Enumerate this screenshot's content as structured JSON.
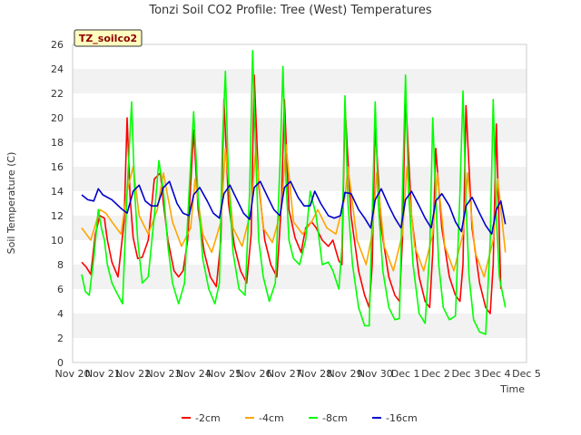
{
  "chart_data": {
    "type": "line",
    "title": "Tonzi Soil CO2 Profile: Tree (West) Temperatures",
    "xlabel": "Time",
    "ylabel": "Soil Temperature (C)",
    "badge": "TZ_soilco2",
    "ylim": [
      0,
      26
    ],
    "yticks": [
      0,
      2,
      4,
      6,
      8,
      10,
      12,
      14,
      16,
      18,
      20,
      22,
      24,
      26
    ],
    "xlim": [
      0,
      15
    ],
    "xticks": [
      {
        "x": 0,
        "label": "Nov 20"
      },
      {
        "x": 1,
        "label": "Nov 21"
      },
      {
        "x": 2,
        "label": "Nov 22"
      },
      {
        "x": 3,
        "label": "Nov 23"
      },
      {
        "x": 4,
        "label": "Nov 24"
      },
      {
        "x": 5,
        "label": "Nov 25"
      },
      {
        "x": 6,
        "label": "Nov 26"
      },
      {
        "x": 7,
        "label": "Nov 27"
      },
      {
        "x": 8,
        "label": "Nov 28"
      },
      {
        "x": 9,
        "label": "Nov 29"
      },
      {
        "x": 10,
        "label": "Nov 30"
      },
      {
        "x": 11,
        "label": "Dec 1"
      },
      {
        "x": 12,
        "label": "Dec 2"
      },
      {
        "x": 13,
        "label": "Dec 3"
      },
      {
        "x": 14,
        "label": "Dec 4"
      },
      {
        "x": 15,
        "label": "Dec 5"
      }
    ],
    "grid": "horizontal bands",
    "legend_position": "bottom",
    "series": [
      {
        "name": "-2cm",
        "color": "#ff0000",
        "x": [
          0.3,
          0.45,
          0.6,
          0.75,
          0.9,
          1.05,
          1.15,
          1.3,
          1.5,
          1.7,
          1.8,
          1.9,
          2.0,
          2.15,
          2.3,
          2.5,
          2.7,
          2.9,
          3.0,
          3.15,
          3.35,
          3.5,
          3.65,
          3.8,
          4.0,
          4.15,
          4.35,
          4.55,
          4.75,
          4.9,
          5.0,
          5.15,
          5.35,
          5.55,
          5.75,
          5.9,
          6.0,
          6.15,
          6.35,
          6.55,
          6.75,
          6.9,
          7.0,
          7.15,
          7.35,
          7.55,
          7.7,
          7.9,
          8.05,
          8.25,
          8.45,
          8.6,
          8.8,
          8.9,
          9.0,
          9.2,
          9.45,
          9.65,
          9.8,
          9.9,
          10.0,
          10.2,
          10.45,
          10.65,
          10.8,
          10.9,
          11.0,
          11.2,
          11.45,
          11.65,
          11.8,
          11.9,
          12.0,
          12.2,
          12.45,
          12.65,
          12.8,
          12.9,
          13.0,
          13.2,
          13.45,
          13.65,
          13.8,
          13.9,
          14.0,
          14.15
        ],
        "y": [
          8.2,
          7.8,
          7.2,
          10.5,
          12.0,
          11.8,
          10.0,
          8.2,
          7.0,
          11.5,
          20.0,
          13.5,
          10.2,
          8.5,
          8.6,
          10.0,
          15.0,
          15.5,
          13.0,
          10.0,
          7.5,
          7.0,
          7.5,
          10.0,
          19.0,
          12.5,
          9.0,
          7.0,
          6.2,
          10.0,
          21.5,
          13.0,
          9.5,
          7.5,
          6.5,
          10.5,
          23.5,
          14.5,
          10.0,
          8.0,
          7.0,
          13.0,
          21.5,
          12.5,
          10.2,
          9.0,
          11.0,
          11.5,
          11.0,
          10.0,
          9.5,
          10.0,
          8.3,
          8.0,
          21.0,
          12.0,
          7.5,
          5.5,
          4.5,
          8.0,
          19.5,
          11.0,
          7.0,
          5.5,
          5.0,
          10.0,
          22.0,
          12.0,
          7.0,
          5.0,
          4.5,
          9.0,
          17.5,
          11.0,
          7.0,
          5.5,
          5.0,
          8.0,
          21.0,
          11.0,
          6.5,
          4.5,
          4.0,
          8.0,
          19.5,
          6.0
        ]
      },
      {
        "name": "-4cm",
        "color": "#ffa500",
        "x": [
          0.3,
          0.6,
          0.9,
          1.1,
          1.3,
          1.6,
          1.8,
          2.0,
          2.2,
          2.5,
          2.8,
          3.0,
          3.3,
          3.6,
          3.9,
          4.05,
          4.3,
          4.6,
          4.9,
          5.05,
          5.3,
          5.6,
          5.9,
          6.05,
          6.3,
          6.6,
          6.9,
          7.05,
          7.3,
          7.6,
          7.9,
          8.1,
          8.4,
          8.7,
          9.0,
          9.1,
          9.4,
          9.7,
          9.9,
          10.05,
          10.3,
          10.6,
          10.9,
          11.05,
          11.3,
          11.6,
          11.9,
          12.05,
          12.3,
          12.6,
          12.9,
          13.05,
          13.3,
          13.6,
          13.9,
          14.05,
          14.3
        ],
        "y": [
          11.0,
          10.0,
          12.5,
          12.2,
          11.5,
          10.5,
          14.0,
          16.0,
          12.0,
          10.5,
          12.5,
          15.5,
          11.5,
          9.5,
          11.0,
          15.0,
          10.5,
          9.0,
          11.5,
          17.5,
          11.0,
          9.5,
          12.5,
          17.5,
          11.0,
          9.8,
          12.5,
          17.8,
          11.5,
          10.5,
          11.5,
          12.5,
          11.0,
          10.5,
          13.5,
          16.0,
          10.0,
          8.0,
          10.5,
          15.5,
          9.5,
          7.5,
          10.5,
          16.0,
          9.5,
          7.5,
          10.5,
          15.5,
          9.5,
          7.5,
          10.5,
          15.5,
          9.0,
          7.0,
          10.0,
          15.0,
          9.0
        ]
      },
      {
        "name": "-8cm",
        "color": "#00ff00",
        "x": [
          0.3,
          0.42,
          0.55,
          0.7,
          0.85,
          0.95,
          1.05,
          1.15,
          1.3,
          1.5,
          1.65,
          1.8,
          1.95,
          2.05,
          2.15,
          2.3,
          2.5,
          2.7,
          2.85,
          3.0,
          3.15,
          3.3,
          3.5,
          3.7,
          3.85,
          4.0,
          4.15,
          4.3,
          4.5,
          4.7,
          4.85,
          4.95,
          5.05,
          5.15,
          5.3,
          5.5,
          5.7,
          5.85,
          5.95,
          6.05,
          6.15,
          6.3,
          6.5,
          6.7,
          6.85,
          6.95,
          7.05,
          7.15,
          7.3,
          7.5,
          7.7,
          7.85,
          8.05,
          8.25,
          8.45,
          8.6,
          8.8,
          8.9,
          9.0,
          9.1,
          9.25,
          9.45,
          9.65,
          9.8,
          9.9,
          10.0,
          10.1,
          10.25,
          10.45,
          10.65,
          10.8,
          10.9,
          11.0,
          11.1,
          11.25,
          11.45,
          11.65,
          11.8,
          11.9,
          12.0,
          12.1,
          12.25,
          12.45,
          12.65,
          12.8,
          12.9,
          13.0,
          13.1,
          13.25,
          13.45,
          13.65,
          13.8,
          13.9,
          14.0,
          14.1,
          14.3
        ],
        "y": [
          7.2,
          5.8,
          5.5,
          8.5,
          12.5,
          11.0,
          10.0,
          8.0,
          6.5,
          5.5,
          4.8,
          14.0,
          21.3,
          14.0,
          10.0,
          6.5,
          7.0,
          12.0,
          16.5,
          14.0,
          9.5,
          6.5,
          4.8,
          6.5,
          14.0,
          20.5,
          13.5,
          8.5,
          6.0,
          4.8,
          6.5,
          18.0,
          23.8,
          15.0,
          9.0,
          6.0,
          5.5,
          14.0,
          25.5,
          17.0,
          10.0,
          7.0,
          5.0,
          6.5,
          16.0,
          24.2,
          15.0,
          10.0,
          8.5,
          8.0,
          10.0,
          14.0,
          12.0,
          8.0,
          8.2,
          7.5,
          6.0,
          9.5,
          21.8,
          13.0,
          8.0,
          4.5,
          3.0,
          3.0,
          12.0,
          21.3,
          13.0,
          7.5,
          4.5,
          3.5,
          3.6,
          14.0,
          23.5,
          14.0,
          8.0,
          4.0,
          3.2,
          9.0,
          20.0,
          13.5,
          8.0,
          4.5,
          3.5,
          3.8,
          14.0,
          22.2,
          13.0,
          7.0,
          3.5,
          2.5,
          2.3,
          10.0,
          21.5,
          12.0,
          7.0,
          4.5
        ]
      },
      {
        "name": "-16cm",
        "color": "#0000cd",
        "x": [
          0.3,
          0.5,
          0.7,
          0.85,
          1.0,
          1.3,
          1.6,
          1.8,
          2.0,
          2.2,
          2.4,
          2.6,
          2.8,
          3.0,
          3.2,
          3.45,
          3.65,
          3.85,
          4.0,
          4.2,
          4.45,
          4.65,
          4.85,
          5.0,
          5.2,
          5.45,
          5.65,
          5.85,
          6.0,
          6.2,
          6.45,
          6.65,
          6.85,
          7.0,
          7.2,
          7.45,
          7.65,
          7.85,
          8.0,
          8.2,
          8.45,
          8.65,
          8.85,
          9.0,
          9.2,
          9.45,
          9.65,
          9.85,
          10.0,
          10.2,
          10.45,
          10.65,
          10.85,
          11.0,
          11.2,
          11.45,
          11.65,
          11.85,
          12.0,
          12.2,
          12.45,
          12.65,
          12.85,
          13.0,
          13.2,
          13.45,
          13.65,
          13.85,
          14.0,
          14.15,
          14.3
        ],
        "y": [
          13.7,
          13.3,
          13.2,
          14.2,
          13.7,
          13.3,
          12.6,
          12.2,
          14.0,
          14.5,
          13.2,
          12.8,
          12.8,
          14.3,
          14.8,
          13.0,
          12.2,
          12.0,
          13.7,
          14.3,
          13.2,
          12.2,
          11.8,
          13.8,
          14.5,
          13.2,
          12.2,
          11.7,
          14.3,
          14.8,
          13.5,
          12.5,
          12.0,
          14.3,
          14.8,
          13.5,
          12.8,
          12.8,
          14.0,
          13.0,
          12.0,
          11.8,
          12.0,
          13.9,
          13.8,
          12.5,
          11.8,
          11.0,
          13.3,
          14.2,
          12.8,
          11.8,
          11.0,
          13.3,
          14.0,
          12.8,
          11.8,
          11.0,
          13.2,
          13.8,
          12.8,
          11.5,
          10.7,
          12.8,
          13.5,
          12.2,
          11.2,
          10.5,
          12.5,
          13.2,
          11.3
        ]
      }
    ]
  }
}
